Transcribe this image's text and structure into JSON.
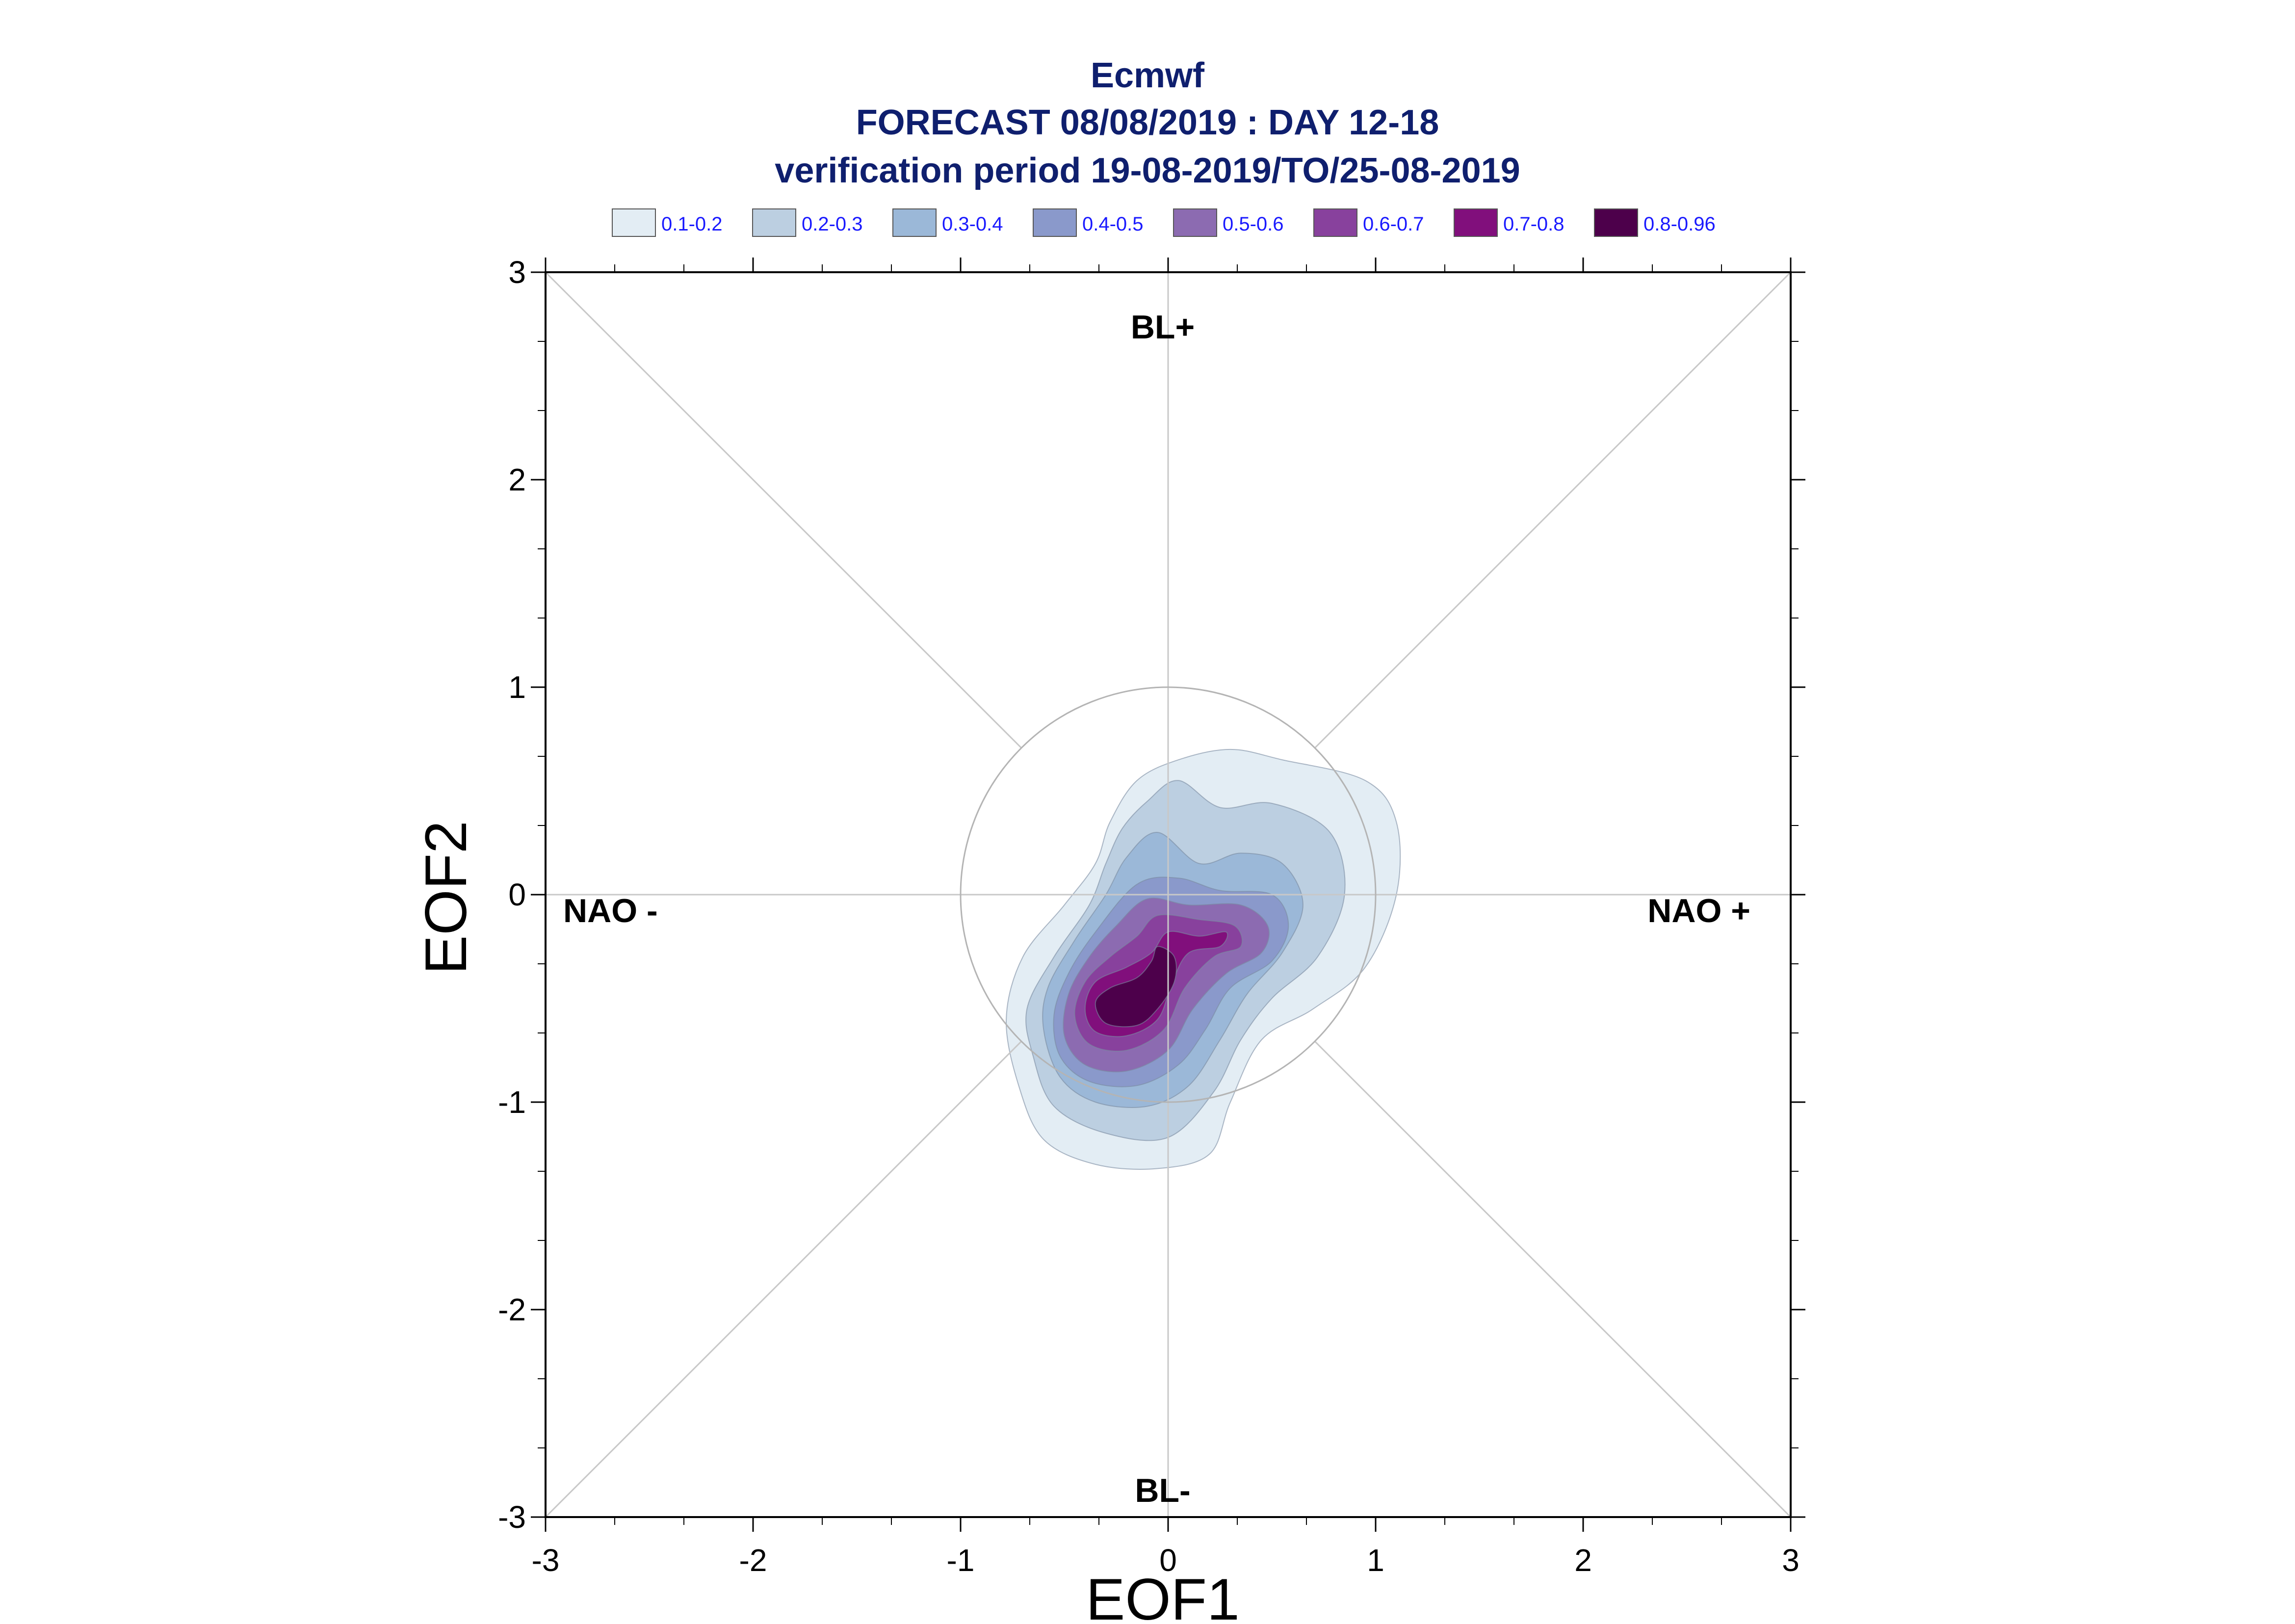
{
  "chart_data": {
    "type": "contour",
    "title": "Ecmwf",
    "subtitle_1": "FORECAST 08/08/2019 : DAY 12-18",
    "subtitle_2": "verification period 19-08-2019/TO/25-08-2019",
    "xlabel": "EOF1",
    "ylabel": "EOF2",
    "xlim": [
      -3,
      3
    ],
    "ylim": [
      -3,
      3
    ],
    "x_ticks": [
      "-3",
      "-2",
      "-1",
      "0",
      "1",
      "2",
      "3"
    ],
    "y_ticks": [
      "3",
      "2",
      "1",
      "0",
      "-1",
      "-2",
      "-3"
    ],
    "reference_circle_radius": 1,
    "diagonal_lines": true,
    "regions": {
      "top": "BL+",
      "bottom": "BL-",
      "left": "NAO -",
      "right": "NAO +"
    },
    "legend": [
      {
        "label": "0.1-0.2",
        "color": "#e3edf4"
      },
      {
        "label": "0.2-0.3",
        "color": "#bccfe1"
      },
      {
        "label": "0.3-0.4",
        "color": "#9bb8d8"
      },
      {
        "label": "0.4-0.5",
        "color": "#8a99cb"
      },
      {
        "label": "0.5-0.6",
        "color": "#8c6bb1"
      },
      {
        "label": "0.6-0.7",
        "color": "#88419d"
      },
      {
        "label": "0.7-0.8",
        "color": "#810f7c"
      },
      {
        "label": "0.8-0.96",
        "color": "#4d004b"
      }
    ],
    "contours": [
      {
        "level": "0.1-0.2",
        "points": [
          [
            -0.28,
            0.35
          ],
          [
            -0.15,
            0.55
          ],
          [
            0.05,
            0.65
          ],
          [
            0.3,
            0.7
          ],
          [
            0.55,
            0.65
          ],
          [
            0.95,
            0.55
          ],
          [
            1.1,
            0.35
          ],
          [
            1.1,
            0.0
          ],
          [
            0.95,
            -0.35
          ],
          [
            0.7,
            -0.55
          ],
          [
            0.45,
            -0.7
          ],
          [
            0.3,
            -1.0
          ],
          [
            0.2,
            -1.25
          ],
          [
            -0.05,
            -1.32
          ],
          [
            -0.35,
            -1.3
          ],
          [
            -0.6,
            -1.18
          ],
          [
            -0.72,
            -0.92
          ],
          [
            -0.78,
            -0.6
          ],
          [
            -0.7,
            -0.3
          ],
          [
            -0.5,
            -0.05
          ],
          [
            -0.35,
            0.15
          ]
        ]
      },
      {
        "level": "0.2-0.3",
        "points": [
          [
            -0.22,
            0.32
          ],
          [
            -0.1,
            0.45
          ],
          [
            0.05,
            0.55
          ],
          [
            0.25,
            0.42
          ],
          [
            0.5,
            0.44
          ],
          [
            0.78,
            0.3
          ],
          [
            0.85,
            0.0
          ],
          [
            0.72,
            -0.3
          ],
          [
            0.5,
            -0.5
          ],
          [
            0.35,
            -0.7
          ],
          [
            0.22,
            -0.95
          ],
          [
            0.0,
            -1.17
          ],
          [
            -0.3,
            -1.15
          ],
          [
            -0.55,
            -1.02
          ],
          [
            -0.65,
            -0.78
          ],
          [
            -0.68,
            -0.55
          ],
          [
            -0.55,
            -0.3
          ],
          [
            -0.38,
            -0.05
          ],
          [
            -0.3,
            0.15
          ]
        ]
      },
      {
        "level": "0.3-0.4",
        "points": [
          [
            -0.2,
            0.18
          ],
          [
            -0.05,
            0.3
          ],
          [
            0.15,
            0.15
          ],
          [
            0.35,
            0.2
          ],
          [
            0.55,
            0.15
          ],
          [
            0.65,
            -0.05
          ],
          [
            0.55,
            -0.28
          ],
          [
            0.38,
            -0.48
          ],
          [
            0.25,
            -0.7
          ],
          [
            0.1,
            -0.92
          ],
          [
            -0.1,
            -1.02
          ],
          [
            -0.35,
            -1.0
          ],
          [
            -0.52,
            -0.88
          ],
          [
            -0.6,
            -0.65
          ],
          [
            -0.58,
            -0.45
          ],
          [
            -0.45,
            -0.22
          ],
          [
            -0.3,
            0.0
          ]
        ]
      },
      {
        "level": "0.4-0.5",
        "points": [
          [
            -0.15,
            0.05
          ],
          [
            0.05,
            0.08
          ],
          [
            0.25,
            0.02
          ],
          [
            0.5,
            0.0
          ],
          [
            0.58,
            -0.15
          ],
          [
            0.5,
            -0.32
          ],
          [
            0.3,
            -0.45
          ],
          [
            0.18,
            -0.65
          ],
          [
            0.05,
            -0.82
          ],
          [
            -0.15,
            -0.92
          ],
          [
            -0.38,
            -0.9
          ],
          [
            -0.52,
            -0.78
          ],
          [
            -0.55,
            -0.58
          ],
          [
            -0.48,
            -0.38
          ],
          [
            -0.35,
            -0.18
          ]
        ]
      },
      {
        "level": "0.5-0.6",
        "points": [
          [
            -0.1,
            -0.02
          ],
          [
            0.1,
            -0.05
          ],
          [
            0.35,
            -0.05
          ],
          [
            0.48,
            -0.15
          ],
          [
            0.45,
            -0.28
          ],
          [
            0.28,
            -0.38
          ],
          [
            0.12,
            -0.55
          ],
          [
            0.0,
            -0.75
          ],
          [
            -0.2,
            -0.85
          ],
          [
            -0.4,
            -0.82
          ],
          [
            -0.5,
            -0.68
          ],
          [
            -0.48,
            -0.48
          ],
          [
            -0.38,
            -0.3
          ],
          [
            -0.25,
            -0.15
          ]
        ]
      },
      {
        "level": "0.6-0.7",
        "points": [
          [
            -0.05,
            -0.1
          ],
          [
            0.15,
            -0.12
          ],
          [
            0.32,
            -0.15
          ],
          [
            0.35,
            -0.25
          ],
          [
            0.22,
            -0.3
          ],
          [
            0.08,
            -0.45
          ],
          [
            -0.02,
            -0.65
          ],
          [
            -0.2,
            -0.75
          ],
          [
            -0.38,
            -0.72
          ],
          [
            -0.45,
            -0.58
          ],
          [
            -0.4,
            -0.42
          ],
          [
            -0.28,
            -0.3
          ],
          [
            -0.15,
            -0.2
          ]
        ]
      },
      {
        "level": "0.7-0.8",
        "points": [
          [
            0.0,
            -0.18
          ],
          [
            0.15,
            -0.2
          ],
          [
            0.28,
            -0.18
          ],
          [
            0.25,
            -0.25
          ],
          [
            0.1,
            -0.28
          ],
          [
            0.02,
            -0.42
          ],
          [
            -0.05,
            -0.6
          ],
          [
            -0.2,
            -0.68
          ],
          [
            -0.35,
            -0.66
          ],
          [
            -0.4,
            -0.55
          ],
          [
            -0.35,
            -0.42
          ],
          [
            -0.2,
            -0.35
          ],
          [
            -0.08,
            -0.28
          ]
        ]
      },
      {
        "level": "0.8-0.96",
        "points": [
          [
            -0.05,
            -0.25
          ],
          [
            0.03,
            -0.3
          ],
          [
            0.03,
            -0.42
          ],
          [
            -0.05,
            -0.55
          ],
          [
            -0.15,
            -0.63
          ],
          [
            -0.3,
            -0.62
          ],
          [
            -0.35,
            -0.52
          ],
          [
            -0.28,
            -0.45
          ],
          [
            -0.15,
            -0.4
          ],
          [
            -0.08,
            -0.32
          ]
        ]
      }
    ]
  }
}
